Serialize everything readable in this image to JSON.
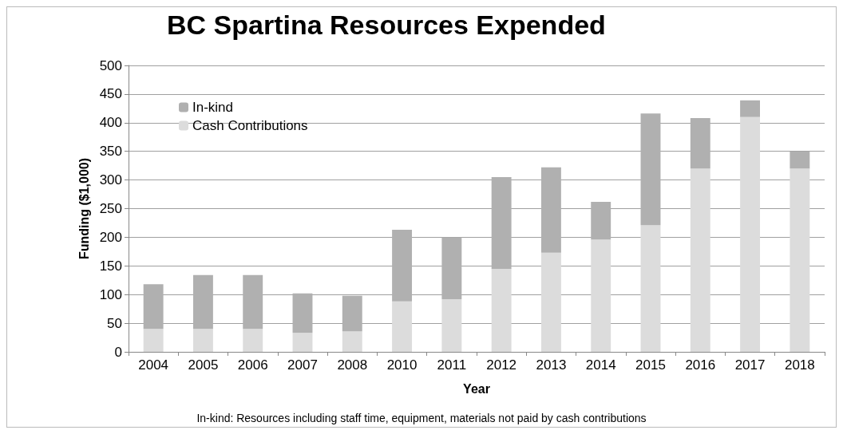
{
  "chart_data": {
    "type": "bar",
    "title": "BC Spartina Resources Expended",
    "xlabel": "Year",
    "ylabel": "Funding ($1,000)",
    "categories": [
      "2004",
      "2005",
      "2006",
      "2007",
      "2008",
      "2010",
      "2011",
      "2012",
      "2013",
      "2014",
      "2015",
      "2016",
      "2017",
      "2018"
    ],
    "stacked": true,
    "series": [
      {
        "name": "Cash Contributions",
        "color": "#dcdcdc",
        "values": [
          40,
          40,
          40,
          33,
          36,
          88,
          92,
          145,
          173,
          196,
          221,
          320,
          410,
          320
        ]
      },
      {
        "name": "In-kind",
        "color": "#b0b0b0",
        "values": [
          78,
          94,
          94,
          69,
          62,
          125,
          108,
          160,
          149,
          66,
          195,
          88,
          29,
          30
        ]
      }
    ],
    "ylim": [
      0,
      500
    ],
    "yticks": [
      0,
      50,
      100,
      150,
      200,
      250,
      300,
      350,
      400,
      450,
      500
    ],
    "grid": "y",
    "legend": "top left",
    "annotations": [
      "In-kind: Resources including staff time, equipment, materials not paid by cash contributions"
    ]
  }
}
